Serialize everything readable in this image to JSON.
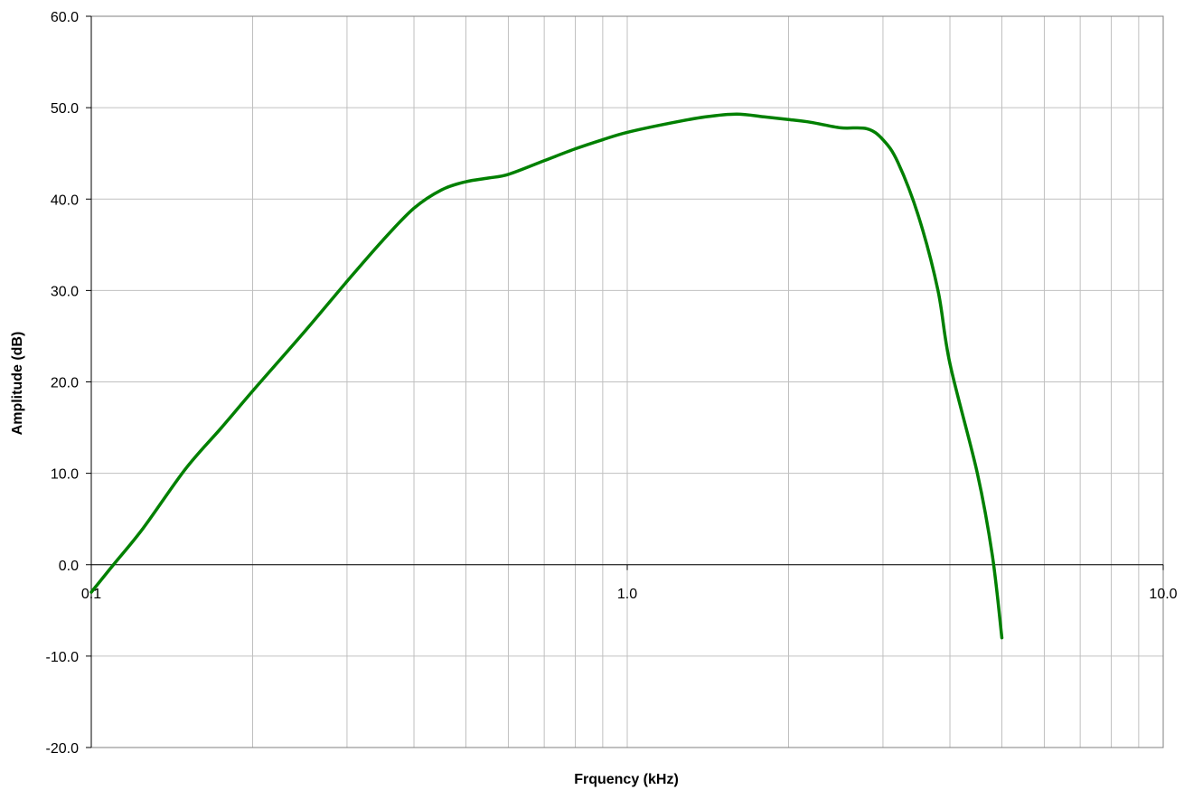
{
  "chart_data": {
    "type": "line",
    "xlabel": "Frquency (kHz)",
    "ylabel": "Amplitude (dB)",
    "xscale": "log",
    "xlim": [
      0.1,
      10.0
    ],
    "ylim": [
      -20.0,
      60.0
    ],
    "x_tick_labels": [
      "0.1",
      "1.0",
      "10.0"
    ],
    "y_tick_labels": [
      "-20.0",
      "-10.0",
      "0.0",
      "10.0",
      "20.0",
      "30.0",
      "40.0",
      "50.0",
      "60.0"
    ],
    "grid": true,
    "legend": "none",
    "series": [
      {
        "color": "#008000",
        "x": [
          0.1,
          0.11,
          0.125,
          0.15,
          0.175,
          0.2,
          0.25,
          0.3,
          0.35,
          0.4,
          0.45,
          0.5,
          0.55,
          0.6,
          0.7,
          0.8,
          0.9,
          1.0,
          1.2,
          1.4,
          1.6,
          1.8,
          2.0,
          2.2,
          2.5,
          2.8,
          3.0,
          3.2,
          3.5,
          3.8,
          4.0,
          4.5,
          4.8,
          5.0
        ],
        "y": [
          -3.0,
          0.0,
          4.0,
          10.5,
          15.0,
          19.0,
          25.5,
          31.0,
          35.5,
          39.0,
          41.0,
          41.9,
          42.3,
          42.7,
          44.2,
          45.5,
          46.5,
          47.3,
          48.3,
          49.0,
          49.3,
          49.0,
          48.7,
          48.4,
          47.8,
          47.7,
          46.5,
          44.0,
          38.0,
          30.0,
          22.0,
          10.0,
          1.0,
          -8.0
        ]
      }
    ]
  }
}
